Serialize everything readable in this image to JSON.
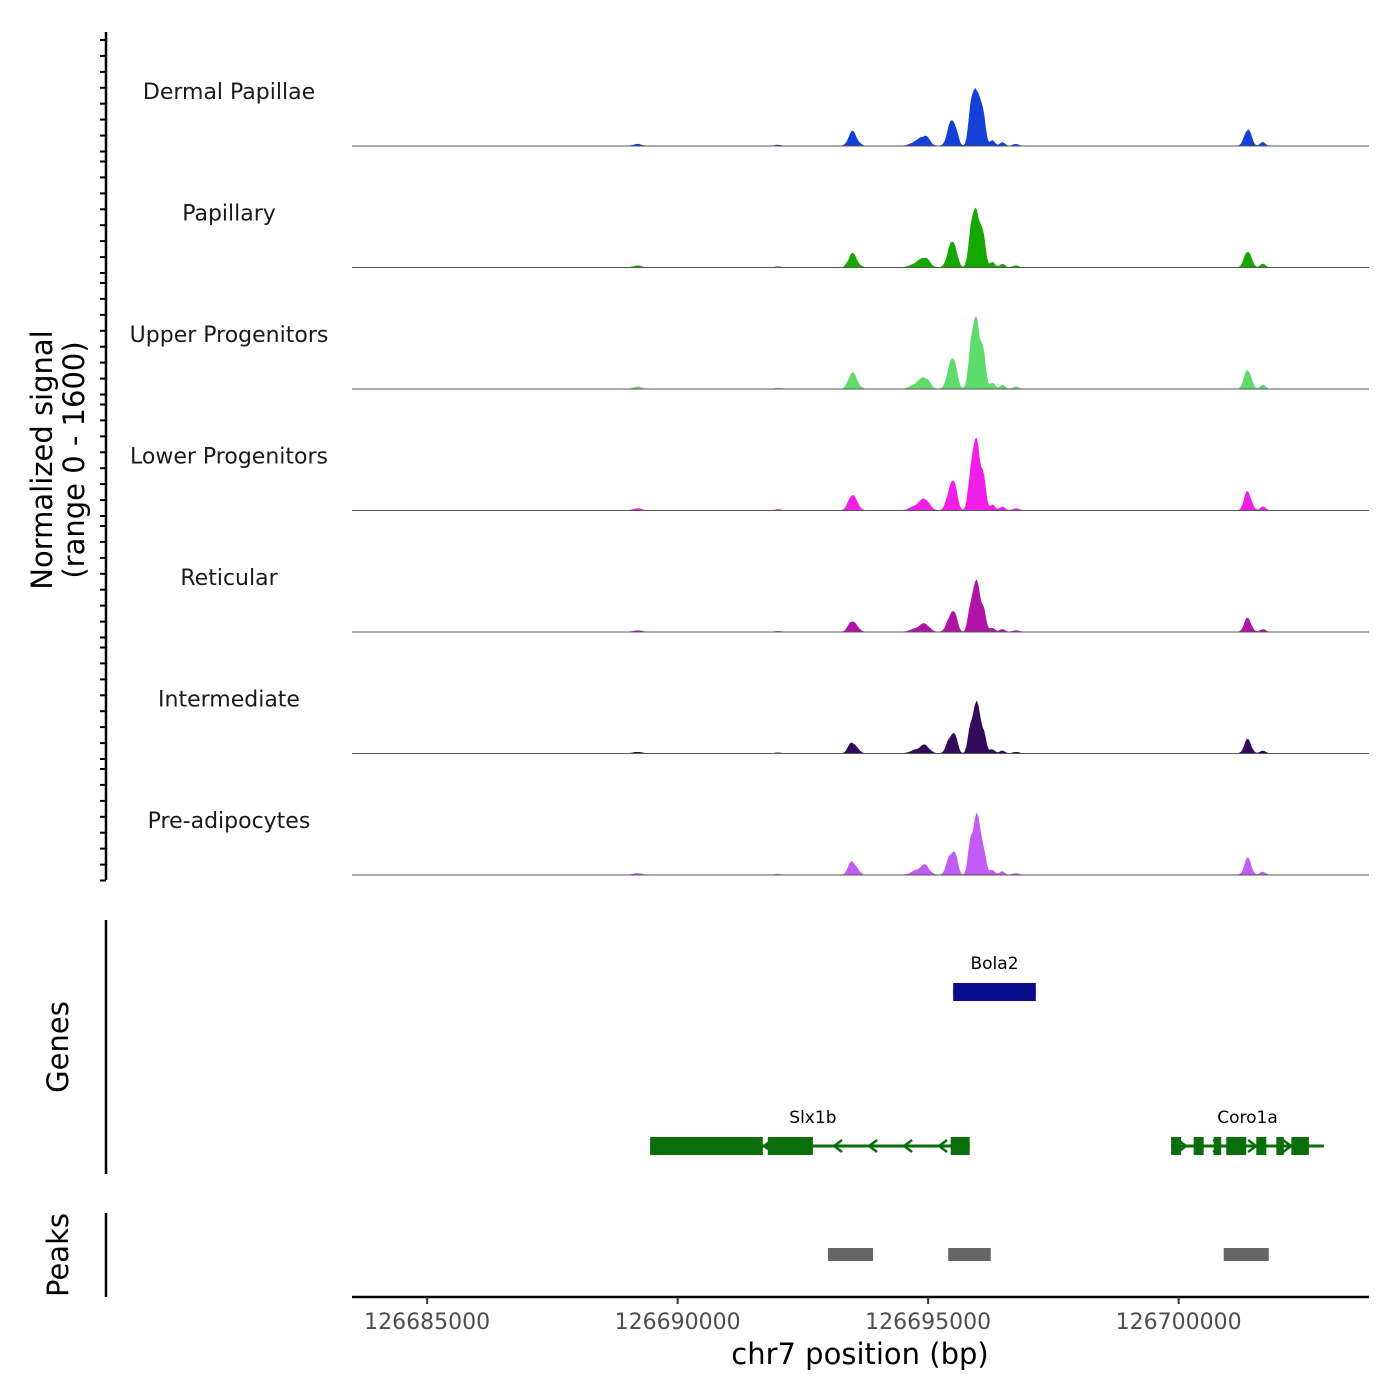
{
  "chart_data": {
    "type": "coverage",
    "y_axis_title_line1": "Normalized signal",
    "y_axis_title_line2": "(range 0 - 1600)",
    "y_range": [
      0,
      1600
    ],
    "x_axis_title": "chr7 position (bp)",
    "x_range": [
      126683500,
      126703800
    ],
    "x_ticks": [
      126685000,
      126690000,
      126695000,
      126700000
    ],
    "x_tick_labels": [
      "126685000",
      "126690000",
      "126695000",
      "126700000"
    ],
    "tracks": [
      {
        "name": "Dermal Papillae",
        "color": "#1440d8",
        "scale": 0.75
      },
      {
        "name": "Papillary",
        "color": "#16a800",
        "scale": 0.74
      },
      {
        "name": "Upper Progenitors",
        "color": "#5edc6c",
        "scale": 0.87
      },
      {
        "name": "Lower Progenitors",
        "color": "#f01ee6",
        "scale": 0.85
      },
      {
        "name": "Reticular",
        "color": "#b014a6",
        "scale": 0.6
      },
      {
        "name": "Intermediate",
        "color": "#330a5c",
        "scale": 0.6
      },
      {
        "name": "Pre-adipocytes",
        "color": "#c25cf6",
        "scale": 0.72
      }
    ],
    "peak_profile": [
      {
        "center": 126693480,
        "height": 0.16,
        "width": 70
      },
      {
        "center": 126693600,
        "height": 0.03,
        "width": 60
      },
      {
        "center": 126694800,
        "height": 0.06,
        "width": 120
      },
      {
        "center": 126694950,
        "height": 0.09,
        "width": 80
      },
      {
        "center": 126695450,
        "height": 0.25,
        "width": 70
      },
      {
        "center": 126695550,
        "height": 0.15,
        "width": 50
      },
      {
        "center": 126695850,
        "height": 0.35,
        "width": 50
      },
      {
        "center": 126695970,
        "height": 0.68,
        "width": 65
      },
      {
        "center": 126696100,
        "height": 0.3,
        "width": 50
      },
      {
        "center": 126696280,
        "height": 0.06,
        "width": 50
      },
      {
        "center": 126696480,
        "height": 0.04,
        "width": 50
      },
      {
        "center": 126696750,
        "height": 0.02,
        "width": 60
      },
      {
        "center": 126701380,
        "height": 0.2,
        "width": 65
      },
      {
        "center": 126701680,
        "height": 0.04,
        "width": 50
      },
      {
        "center": 126689200,
        "height": 0.02,
        "width": 80
      },
      {
        "center": 126692000,
        "height": 0.01,
        "width": 60
      }
    ],
    "genes_axis_title": "Genes",
    "genes": [
      {
        "name": "Bola2",
        "start": 126695500,
        "end": 126697150,
        "strand": "-",
        "color": "#0b0e8c",
        "row": 0,
        "exons": [
          [
            126695500,
            126697150
          ]
        ]
      },
      {
        "name": "Slx1b",
        "start": 126689450,
        "end": 126695830,
        "strand": "-",
        "color": "#0a6e0a",
        "row": 1,
        "exons": [
          [
            126689450,
            126691700
          ],
          [
            126691800,
            126692700
          ],
          [
            126695450,
            126695830
          ]
        ]
      },
      {
        "name": "Coro1a",
        "start": 126699850,
        "end": 126702900,
        "strand": "+",
        "color": "#0a6e0a",
        "row": 1,
        "exons": [
          [
            126699850,
            126700050
          ],
          [
            126700300,
            126700500
          ],
          [
            126700700,
            126700850
          ],
          [
            126700950,
            126701350
          ],
          [
            126701550,
            126701750
          ],
          [
            126701950,
            126702100
          ],
          [
            126702250,
            126702600
          ]
        ]
      }
    ],
    "peaks_axis_title": "Peaks",
    "peaks": [
      {
        "start": 126693000,
        "end": 126693900
      },
      {
        "start": 126695400,
        "end": 126696250
      },
      {
        "start": 126700900,
        "end": 126701800
      }
    ],
    "peak_color": "#666666"
  }
}
